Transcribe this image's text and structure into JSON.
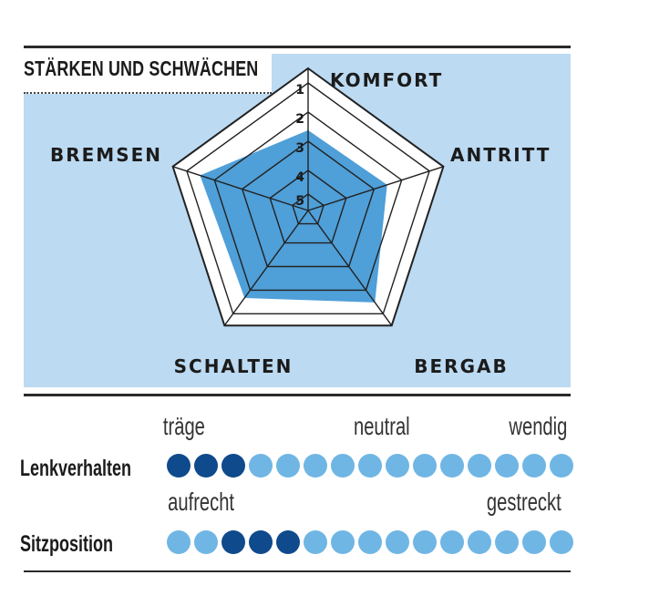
{
  "panel": {
    "title": "STÄRKEN UND SCHWÄCHEN"
  },
  "chart_data": {
    "type": "radar",
    "axes": [
      "KOMFORT",
      "ANTRITT",
      "BERGAB",
      "SCHALTEN",
      "BREMSEN"
    ],
    "scale_labels": [
      "1",
      "2",
      "3",
      "4",
      "5"
    ],
    "scale_min": 1,
    "scale_max": 5,
    "values": [
      2.7,
      2.6,
      1.5,
      1.7,
      1.5
    ],
    "colors": {
      "fill": "#4f9fd8",
      "panel": "#bcdaf2",
      "grid": "#222222",
      "outer_fill": "#ffffff"
    }
  },
  "ratings": [
    {
      "label": "Lenkverhalten",
      "scale_words": [
        "träge",
        "neutral",
        "wendig"
      ],
      "dot_count": 15,
      "filled_positions": [
        1,
        2,
        3
      ]
    },
    {
      "label": "Sitzposition",
      "scale_words": [
        "aufrecht",
        "gestreckt"
      ],
      "dot_count": 15,
      "filled_positions": [
        3,
        4,
        5
      ]
    }
  ],
  "dot_colors": {
    "on": "#0f4a8c",
    "off": "#6fb6e4"
  }
}
